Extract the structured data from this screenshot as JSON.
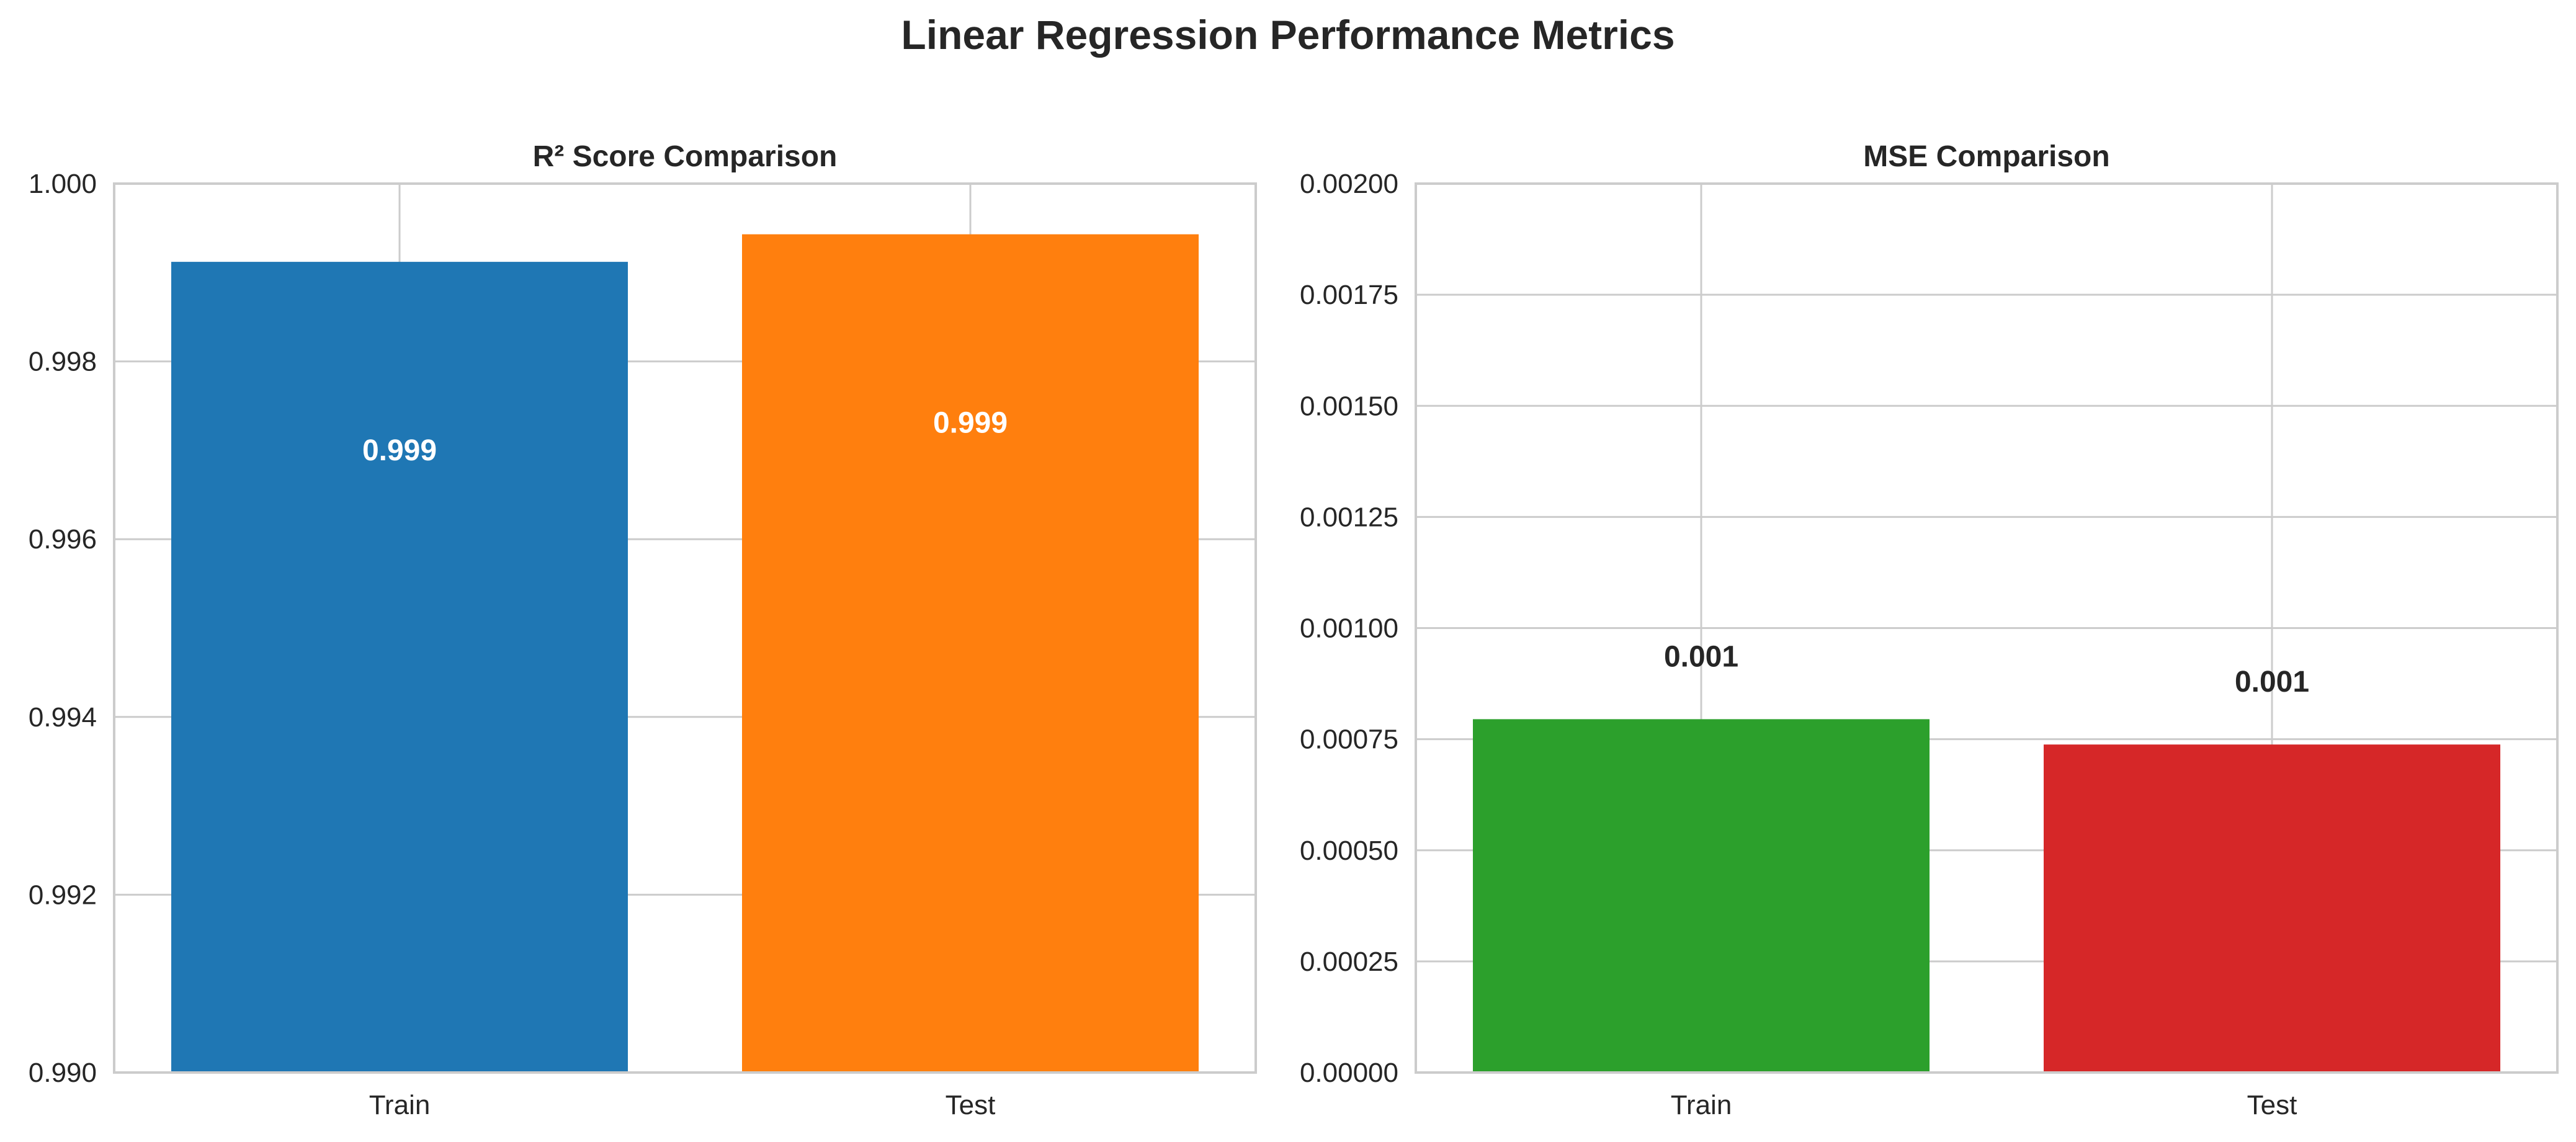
{
  "figure": {
    "title": "Linear Regression Performance Metrics"
  },
  "chart_data": [
    {
      "type": "bar",
      "title": "R² Score Comparison",
      "xlabel": "",
      "ylabel": "",
      "categories": [
        "Train",
        "Test"
      ],
      "values": [
        0.99912,
        0.99943
      ],
      "data_labels": [
        "0.999",
        "0.999"
      ],
      "colors": [
        "#1f77b4",
        "#ff7f0e"
      ],
      "data_label_color": "#ffffff",
      "ylim": [
        0.99,
        1.0
      ],
      "yticks": [
        0.99,
        0.992,
        0.994,
        0.996,
        0.998,
        1.0
      ],
      "ytick_labels": [
        "0.990",
        "0.992",
        "0.994",
        "0.996",
        "0.998",
        "1.000"
      ],
      "grid": true,
      "legend": "none"
    },
    {
      "type": "bar",
      "title": "MSE Comparison",
      "xlabel": "",
      "ylabel": "",
      "categories": [
        "Train",
        "Test"
      ],
      "values": [
        0.000795,
        0.000738
      ],
      "data_labels": [
        "0.001",
        "0.001"
      ],
      "colors": [
        "#2ca02c",
        "#d62728"
      ],
      "data_label_color": "#262626",
      "ylim": [
        0,
        0.002
      ],
      "yticks": [
        0,
        0.00025,
        0.0005,
        0.00075,
        0.001,
        0.00125,
        0.0015,
        0.00175,
        0.002
      ],
      "ytick_labels": [
        "0.00000",
        "0.00025",
        "0.00050",
        "0.00075",
        "0.00100",
        "0.00125",
        "0.00150",
        "0.00175",
        "0.00200"
      ],
      "grid": true,
      "legend": "none"
    }
  ]
}
